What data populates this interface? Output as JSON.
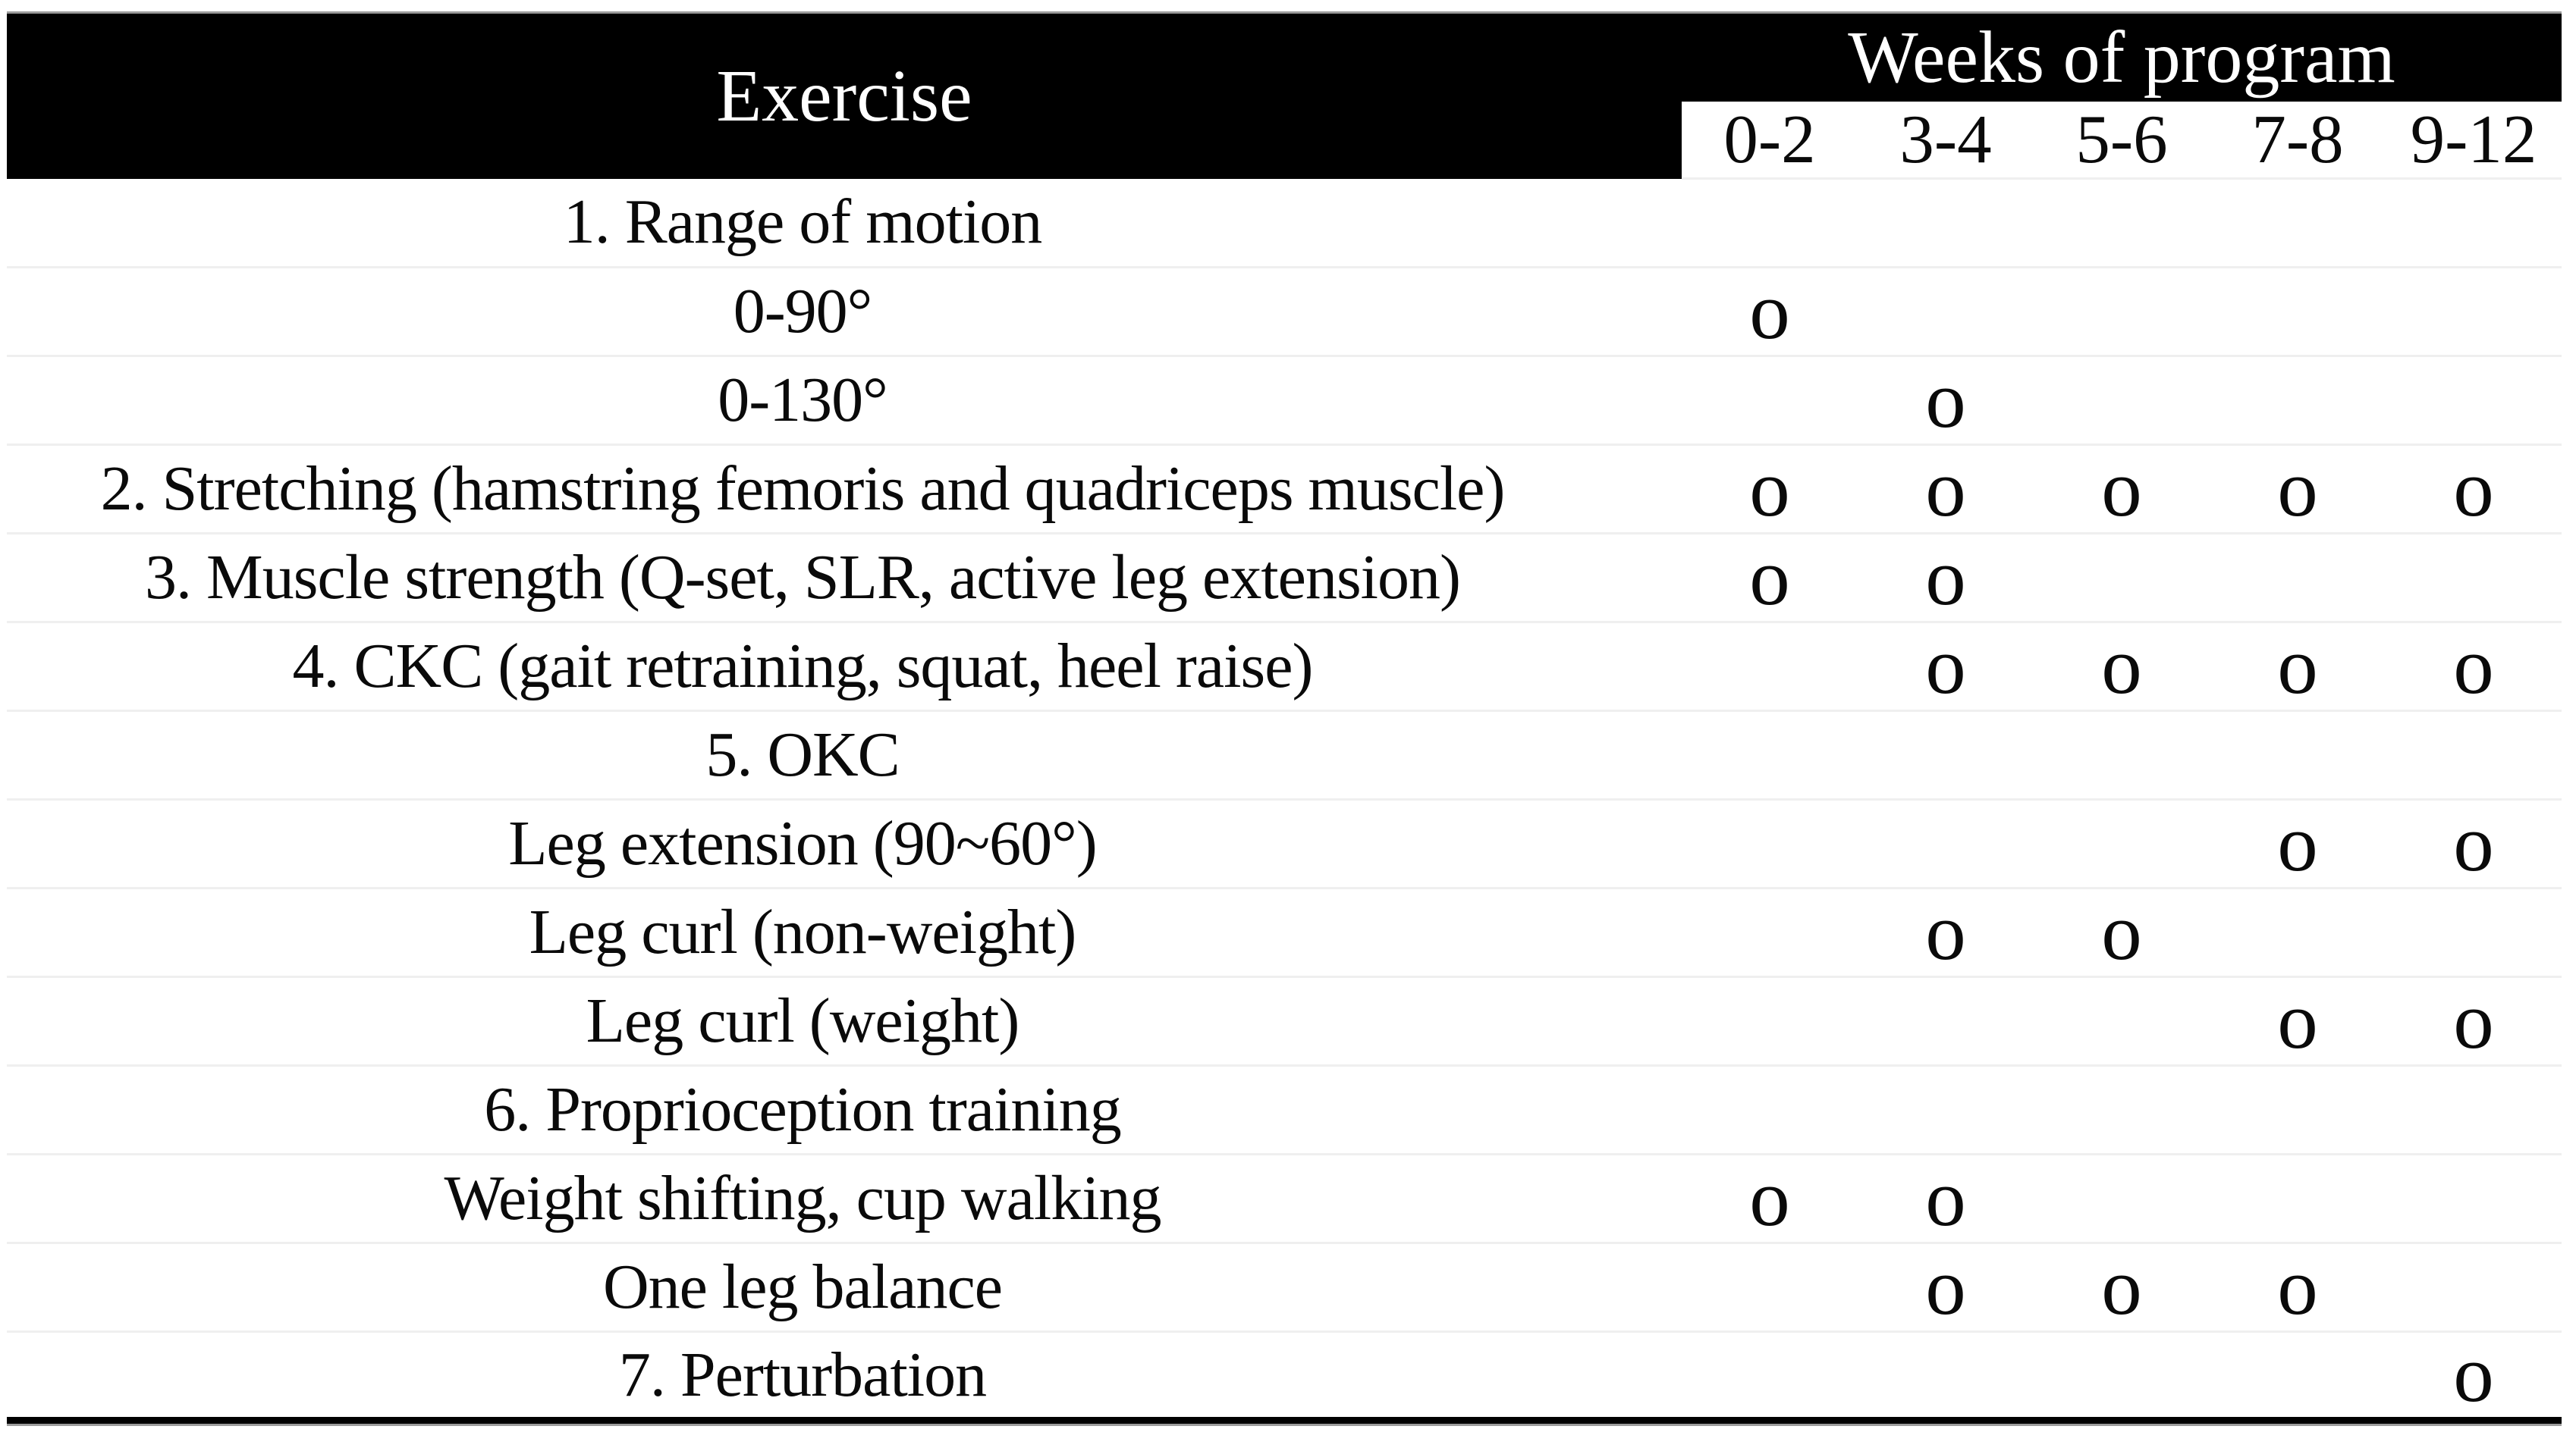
{
  "table": {
    "title_col_header": "Exercise",
    "weeks_header": "Weeks of program",
    "week_labels": [
      "0-2",
      "3-4",
      "5-6",
      "7-8",
      "9-12"
    ],
    "mark_symbol": "o",
    "colors": {
      "header_bg": "#000000",
      "header_text": "#ffffff",
      "body_text": "#0a0a0a",
      "row_divider": "#efefef",
      "top_hairline": "#9c9c9c",
      "bottom_rule": "#000000"
    },
    "rows": [
      {
        "label": "1. Range of motion",
        "marks": [
          "",
          "",
          "",
          "",
          ""
        ]
      },
      {
        "label": "0-90°",
        "marks": [
          "o",
          "",
          "",
          "",
          ""
        ]
      },
      {
        "label": "0-130°",
        "marks": [
          "",
          "o",
          "",
          "",
          ""
        ]
      },
      {
        "label": "2. Stretching (hamstring femoris and quadriceps muscle)",
        "marks": [
          "o",
          "o",
          "o",
          "o",
          "o"
        ]
      },
      {
        "label": "3. Muscle strength (Q-set, SLR, active leg extension)",
        "marks": [
          "o",
          "o",
          "",
          "",
          ""
        ]
      },
      {
        "label": "4. CKC (gait retraining, squat, heel raise)",
        "marks": [
          "",
          "o",
          "o",
          "o",
          "o"
        ]
      },
      {
        "label": "5. OKC",
        "marks": [
          "",
          "",
          "",
          "",
          ""
        ]
      },
      {
        "label": "Leg extension (90~60°)",
        "marks": [
          "",
          "",
          "",
          "o",
          "o"
        ]
      },
      {
        "label": "Leg curl (non-weight)",
        "marks": [
          "",
          "o",
          "o",
          "",
          ""
        ]
      },
      {
        "label": "Leg curl (weight)",
        "marks": [
          "",
          "",
          "",
          "o",
          "o"
        ]
      },
      {
        "label": "6. Proprioception training",
        "marks": [
          "",
          "",
          "",
          "",
          ""
        ]
      },
      {
        "label": "Weight shifting, cup walking",
        "marks": [
          "o",
          "o",
          "",
          "",
          ""
        ]
      },
      {
        "label": "One leg balance",
        "marks": [
          "",
          "o",
          "o",
          "o",
          ""
        ]
      },
      {
        "label": "7. Perturbation",
        "marks": [
          "",
          "",
          "",
          "",
          "o"
        ]
      }
    ]
  }
}
